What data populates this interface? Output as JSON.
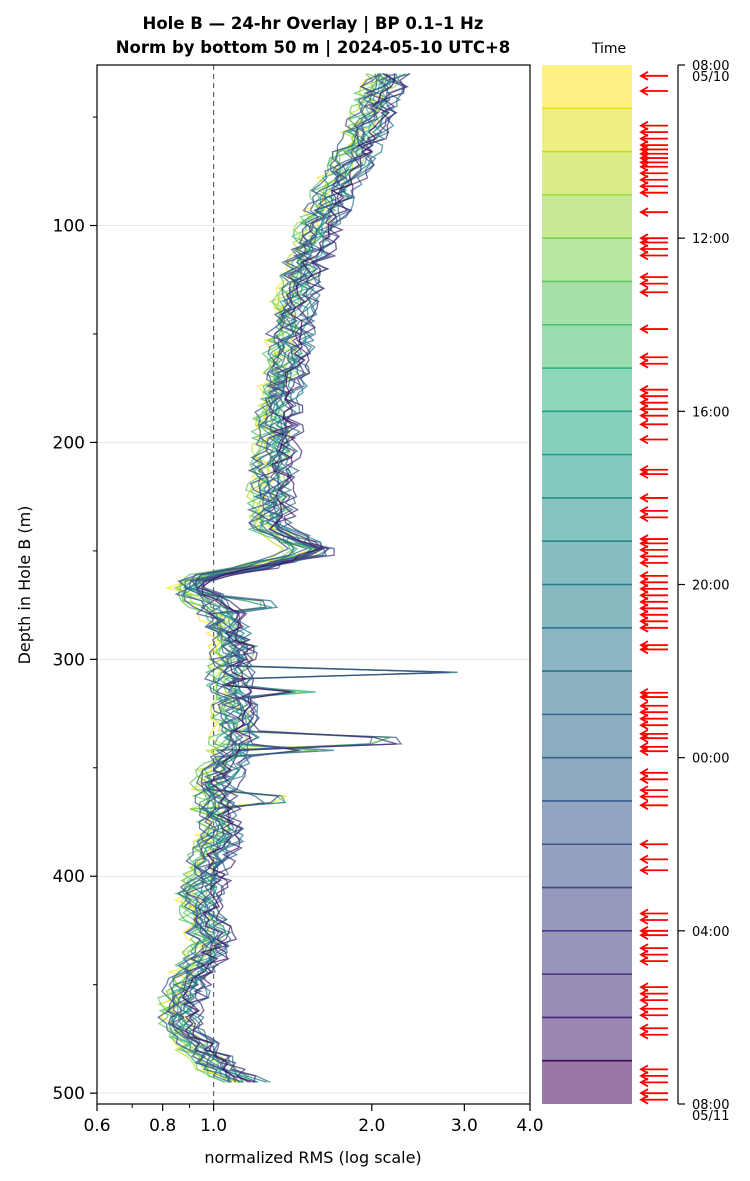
{
  "chart_data": {
    "type": "line",
    "title": "Hole B — 24-hr Overlay  |  BP 0.1–1 Hz",
    "subtitle": "Norm by bottom 50 m  |  2024-05-10 UTC+8",
    "xlabel": "normalized RMS  (log scale)",
    "ylabel": "Depth in Hole B (m)",
    "x_scale": "log",
    "xlim": [
      0.6,
      4.0
    ],
    "ylim": [
      505,
      26
    ],
    "x_ticks": [
      "0.6",
      "0.8",
      "1.0",
      "2.0",
      "3.0",
      "4.0"
    ],
    "y_ticks": [
      "100",
      "200",
      "300",
      "400",
      "500"
    ],
    "reference_line_x": 1.0,
    "grid": "horizontal",
    "mean_profile": {
      "depth": [
        30,
        45,
        60,
        80,
        100,
        120,
        140,
        160,
        180,
        200,
        220,
        240,
        250,
        258,
        262,
        266,
        270,
        280,
        290,
        300,
        310,
        320,
        330,
        340,
        350,
        360,
        370,
        380,
        390,
        400,
        410,
        420,
        430,
        440,
        450,
        460,
        470,
        480,
        490,
        497
      ],
      "value": [
        2.15,
        2.05,
        1.95,
        1.75,
        1.6,
        1.5,
        1.42,
        1.4,
        1.35,
        1.33,
        1.3,
        1.3,
        1.55,
        1.2,
        0.95,
        0.9,
        0.95,
        1.05,
        1.08,
        1.1,
        1.08,
        1.1,
        1.12,
        1.1,
        1.05,
        1.0,
        1.02,
        1.05,
        1.0,
        0.98,
        0.95,
        0.97,
        1.0,
        0.95,
        0.9,
        0.87,
        0.88,
        0.95,
        1.05,
        1.2
      ]
    },
    "spikes": [
      {
        "depth": 251,
        "value": 1.75
      },
      {
        "depth": 306,
        "value": 2.95
      },
      {
        "depth": 315,
        "value": 1.6
      },
      {
        "depth": 337,
        "value": 2.3
      },
      {
        "depth": 342,
        "value": 1.7
      },
      {
        "depth": 364,
        "value": 1.4
      },
      {
        "depth": 275,
        "value": 1.35
      },
      {
        "depth": 295,
        "value": 1.25
      }
    ],
    "colorbar": {
      "label": "Time",
      "tick_labels": [
        {
          "text": "08:00",
          "hour": 0
        },
        {
          "text": "05/10",
          "hour": 0,
          "second_line": true
        },
        {
          "text": "12:00",
          "hour": 4
        },
        {
          "text": "16:00",
          "hour": 8
        },
        {
          "text": "20:00",
          "hour": 12
        },
        {
          "text": "00:00",
          "hour": 16
        },
        {
          "text": "04:00",
          "hour": 20
        },
        {
          "text": "08:00",
          "hour": 24
        },
        {
          "text": "05/11",
          "hour": 24,
          "second_line": true
        }
      ],
      "hours": 24,
      "colors": [
        "#fde725",
        "#dfe318",
        "#bddf26",
        "#9bd93c",
        "#7ad151",
        "#5ec962",
        "#44bf70",
        "#2fb47c",
        "#22a884",
        "#1f9e89",
        "#21918c",
        "#24868e",
        "#277f8e",
        "#2a788e",
        "#2c728e",
        "#306a8e",
        "#33638d",
        "#375a8c",
        "#3b528b",
        "#404688",
        "#433e85",
        "#46327e",
        "#482576",
        "#46085c"
      ]
    },
    "arrow_color": "#ff0000",
    "arrow_times_hours": [
      0.25,
      0.6,
      1.4,
      1.55,
      1.7,
      1.85,
      1.95,
      2.05,
      2.15,
      2.25,
      2.35,
      2.5,
      2.65,
      2.8,
      2.95,
      3.4,
      4.0,
      4.1,
      4.25,
      4.4,
      4.9,
      5.05,
      5.25,
      6.1,
      6.75,
      6.9,
      7.5,
      7.65,
      7.8,
      7.95,
      8.1,
      8.3,
      8.65,
      9.35,
      9.45,
      10.0,
      10.3,
      10.45,
      10.95,
      11.05,
      11.2,
      11.35,
      11.5,
      11.8,
      11.95,
      12.1,
      12.25,
      12.4,
      12.55,
      12.7,
      12.85,
      13.0,
      13.4,
      13.5,
      14.5,
      14.6,
      14.8,
      14.95,
      15.1,
      15.25,
      15.45,
      15.55,
      15.75,
      15.85,
      16.35,
      16.5,
      16.75,
      16.9,
      17.1,
      18.0,
      18.35,
      18.6,
      19.6,
      19.75,
      20.0,
      20.1,
      20.4,
      20.55,
      20.7,
      21.3,
      21.45,
      21.6,
      21.8,
      21.95,
      22.25,
      22.4,
      23.2,
      23.35,
      23.5,
      23.75,
      23.9
    ]
  }
}
